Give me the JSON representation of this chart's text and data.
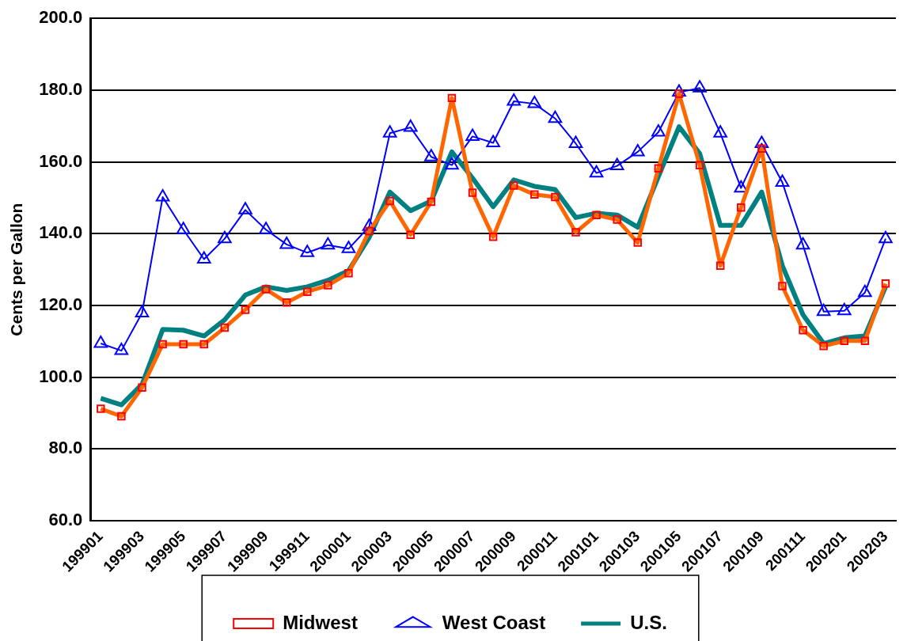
{
  "chart_data": {
    "type": "line",
    "ylabel": "Cents per Gallon",
    "categories": [
      "199901",
      null,
      "199903",
      null,
      "199905",
      null,
      "199907",
      null,
      "199909",
      null,
      "199911",
      null,
      "200001",
      null,
      "200003",
      null,
      "200005",
      null,
      "200007",
      null,
      "200009",
      null,
      "200011",
      null,
      "200101",
      null,
      "200103",
      null,
      "200105",
      null,
      "200107",
      null,
      "200109",
      null,
      "200111",
      null,
      "200201",
      null,
      "200203"
    ],
    "series": [
      {
        "name": "Midwest",
        "color": "#ff6600",
        "marker": "square",
        "values": [
          91.2,
          89.1,
          97.1,
          109.2,
          109.2,
          109.2,
          113.8,
          118.8,
          124.5,
          120.8,
          123.8,
          125.6,
          129.0,
          140.7,
          149.1,
          139.7,
          148.9,
          177.8,
          151.4,
          139.1,
          153.4,
          150.9,
          150.2,
          140.4,
          145.2,
          143.9,
          137.5,
          158.2,
          179.0,
          159.1,
          131.1,
          147.3,
          163.7,
          125.4,
          113.1,
          108.7,
          110.1,
          110.1,
          126.1
        ]
      },
      {
        "name": "West Coast",
        "color": "#0000ff",
        "marker": "triangle",
        "values": [
          109.4,
          107.4,
          117.9,
          150.2,
          141.1,
          132.9,
          138.6,
          146.6,
          141.1,
          137.0,
          134.7,
          136.8,
          135.8,
          142.0,
          168.0,
          169.6,
          161.4,
          159.1,
          167.1,
          165.3,
          176.9,
          176.2,
          172.1,
          165.1,
          156.9,
          158.9,
          162.8,
          168.3,
          179.4,
          180.6,
          168.0,
          152.7,
          165.1,
          154.3,
          136.8,
          118.3,
          118.5,
          123.6,
          138.6
        ]
      },
      {
        "name": "U.S.",
        "color": "#008080",
        "marker": "none",
        "values": [
          94.1,
          92.3,
          98.0,
          113.3,
          113.1,
          111.5,
          116.0,
          122.9,
          125.2,
          124.2,
          125.2,
          127.0,
          129.7,
          139.0,
          151.6,
          146.4,
          149.1,
          162.8,
          155.5,
          147.5,
          155.0,
          153.2,
          152.3,
          144.5,
          145.7,
          145.2,
          141.8,
          155.9,
          169.8,
          162.3,
          142.3,
          142.3,
          151.6,
          131.1,
          117.4,
          109.4,
          111.0,
          111.5,
          125.2
        ]
      }
    ],
    "ylim": [
      60,
      200
    ],
    "yticks": [
      {
        "value": 60,
        "label": "60.0"
      },
      {
        "value": 80,
        "label": "80.0"
      },
      {
        "value": 100,
        "label": "100.0"
      },
      {
        "value": 120,
        "label": "120.0"
      },
      {
        "value": 140,
        "label": "140.0"
      },
      {
        "value": 160,
        "label": "160.0"
      },
      {
        "value": 180,
        "label": "180.0"
      },
      {
        "value": 200,
        "label": "200.0"
      }
    ],
    "grid": "y",
    "legend": "bottom",
    "line_style": "solid"
  }
}
